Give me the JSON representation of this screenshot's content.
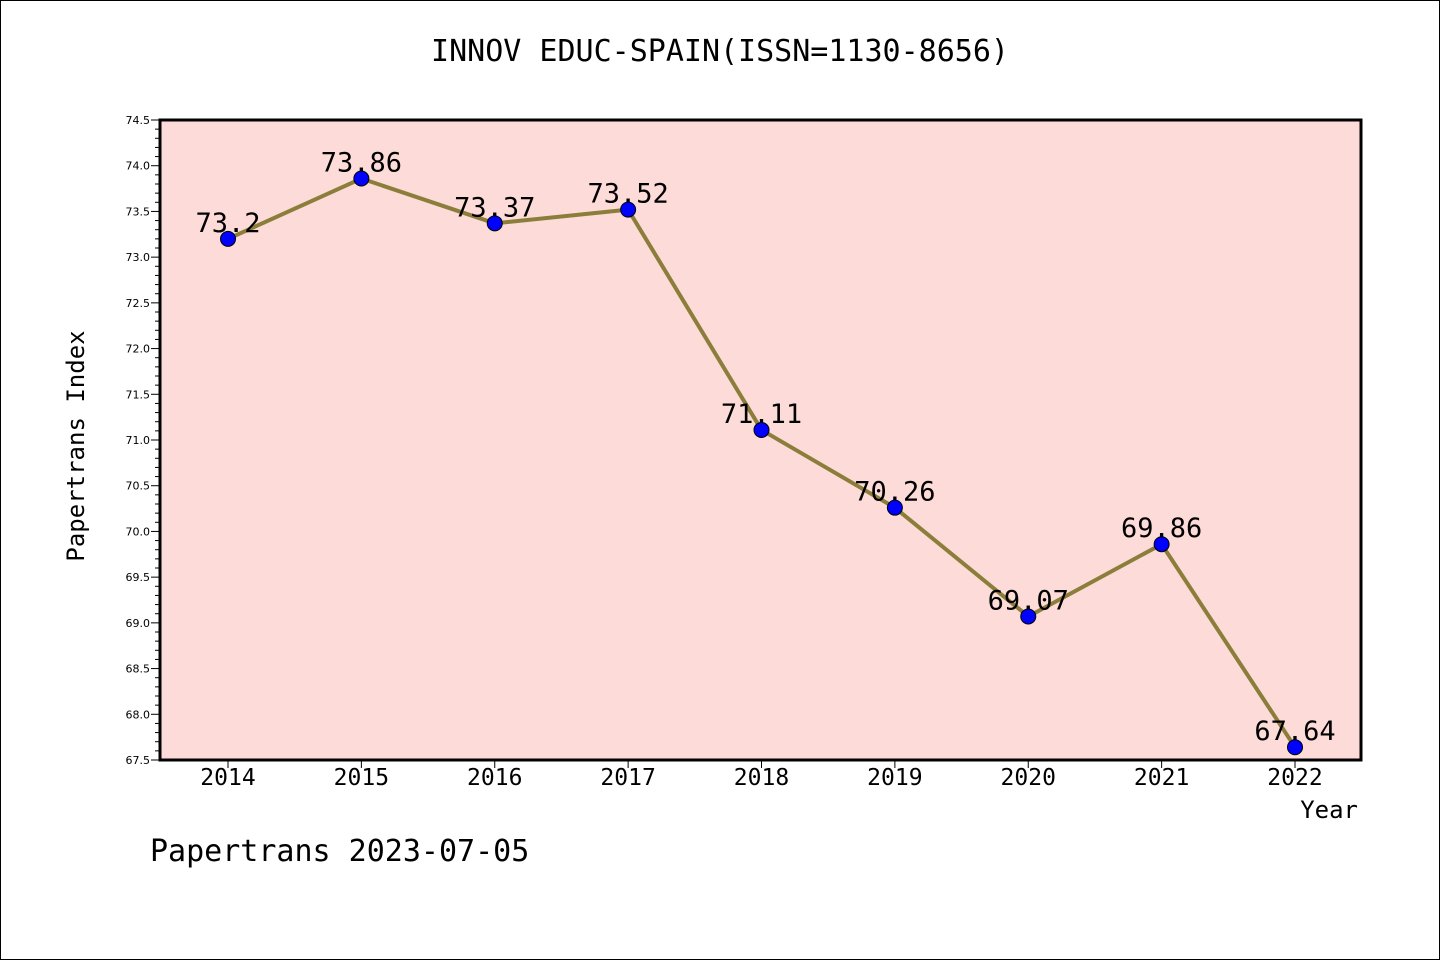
{
  "chart_data": {
    "type": "line",
    "title": "INNOV EDUC-SPAIN(ISSN=1130-8656)",
    "xlabel": "Year",
    "ylabel": "Papertrans Index",
    "categories": [
      "2014",
      "2015",
      "2016",
      "2017",
      "2018",
      "2019",
      "2020",
      "2021",
      "2022"
    ],
    "series": [
      {
        "values": [
          73.2,
          73.86,
          73.37,
          73.52,
          71.11,
          70.26,
          69.07,
          69.86,
          67.64
        ],
        "labels": [
          "73.2",
          "73.86",
          "73.37",
          "73.52",
          "71.11",
          "70.26",
          "69.07",
          "69.86",
          "67.64"
        ]
      }
    ],
    "ylim": [
      67.5,
      74.5
    ],
    "yticks": [
      "67.5",
      "68.0",
      "68.5",
      "69.0",
      "69.5",
      "70.0",
      "70.5",
      "71.0",
      "71.5",
      "72.0",
      "72.5",
      "73.0",
      "73.5",
      "74.0",
      "74.5"
    ],
    "grid": false,
    "colors": {
      "plot_background": "#fddbd8",
      "line": "#8b7d3a",
      "marker": "#0000ff"
    }
  },
  "footer": "Papertrans 2023-07-05"
}
